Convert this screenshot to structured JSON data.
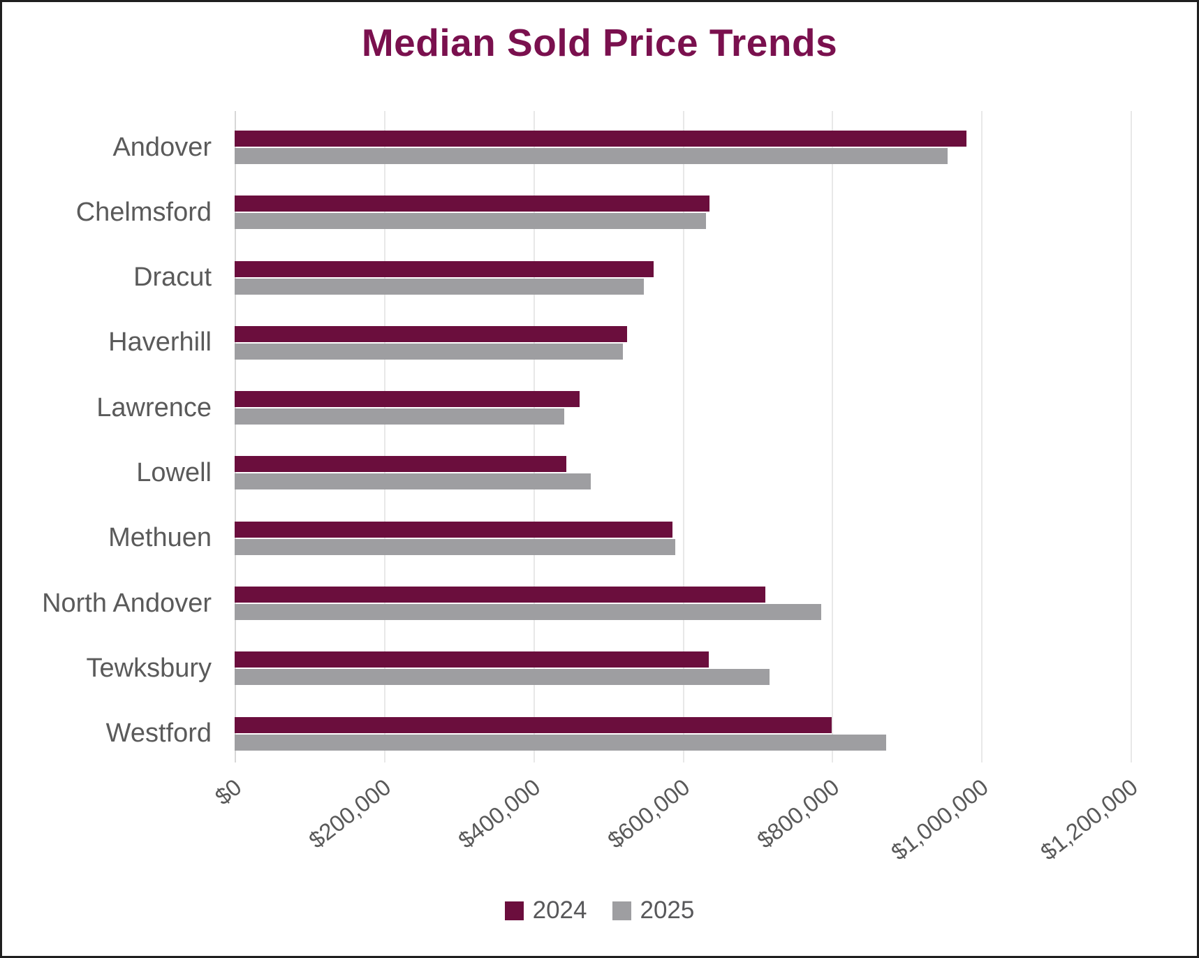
{
  "chart_data": {
    "type": "bar",
    "orientation": "horizontal",
    "title": "Median Sold Price Trends",
    "categories": [
      "Andover",
      "Chelmsford",
      "Dracut",
      "Haverhill",
      "Lawrence",
      "Lowell",
      "Methuen",
      "North Andover",
      "Tewksbury",
      "Westford"
    ],
    "series": [
      {
        "name": "2024",
        "color": "#6b0e3d",
        "values": [
          980000,
          636000,
          561000,
          526000,
          462000,
          444000,
          586000,
          711000,
          635000,
          800000
        ]
      },
      {
        "name": "2025",
        "color": "#9e9ea1",
        "values": [
          955000,
          631000,
          548000,
          520000,
          441000,
          477000,
          590000,
          786000,
          716000,
          873000
        ]
      }
    ],
    "xlim": [
      0,
      1200000
    ],
    "x_ticks": [
      {
        "value": 0,
        "label": "$0"
      },
      {
        "value": 200000,
        "label": "$200,000"
      },
      {
        "value": 400000,
        "label": "$400,000"
      },
      {
        "value": 600000,
        "label": "$600,000"
      },
      {
        "value": 800000,
        "label": "$800,000"
      },
      {
        "value": 1000000,
        "label": "$1,000,000"
      },
      {
        "value": 1200000,
        "label": "$1,200,000"
      }
    ],
    "grid": "vertical",
    "legend_position": "bottom",
    "colors": {
      "title": "#7a104e",
      "axis_text": "#595959",
      "gridline": "#e8e8e8"
    }
  }
}
